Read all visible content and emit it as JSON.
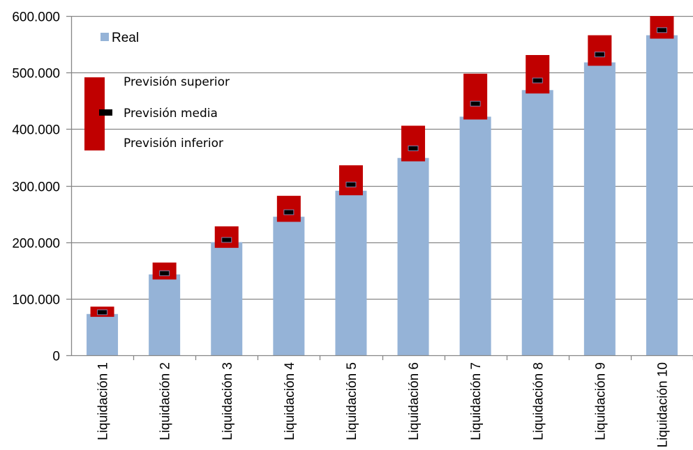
{
  "chart_data": {
    "type": "bar",
    "categories": [
      "Liquidación 1",
      "Liquidación 2",
      "Liquidación 3",
      "Liquidación 4",
      "Liquidación 5",
      "Liquidación 6",
      "Liquidación 7",
      "Liquidación 8",
      "Liquidación 9",
      "Liquidación 10"
    ],
    "series": [
      {
        "name": "Real",
        "values": [
          73000,
          143000,
          200000,
          245000,
          291000,
          349000,
          422000,
          469000,
          518000,
          566000
        ]
      },
      {
        "name": "Previsión superior",
        "values": [
          86000,
          164000,
          228000,
          282000,
          336000,
          406000,
          498000,
          531000,
          566000,
          600000
        ]
      },
      {
        "name": "Previsión media",
        "values": [
          76000,
          145000,
          204000,
          253000,
          302000,
          366000,
          445000,
          486000,
          532000,
          575000
        ]
      },
      {
        "name": "Previsión inferior",
        "values": [
          68000,
          134000,
          190000,
          236000,
          283000,
          343000,
          417000,
          463000,
          512000,
          560000
        ]
      }
    ],
    "ylim": [
      0,
      600000
    ],
    "yticks": [
      0,
      100000,
      200000,
      300000,
      400000,
      500000,
      600000
    ],
    "ytick_labels": [
      "0",
      "100.000",
      "200.000",
      "300.000",
      "400.000",
      "500.000",
      "600.000"
    ],
    "grid": true,
    "legend_placement": "top-left",
    "colors": {
      "real": "#95b3d7",
      "range": "#c00000",
      "mean": "#000000",
      "grid": "#868686"
    }
  },
  "legend": {
    "real": "Real",
    "superior": "Previsión superior",
    "media": "Previsión media",
    "inferior": "Previsión inferior"
  }
}
